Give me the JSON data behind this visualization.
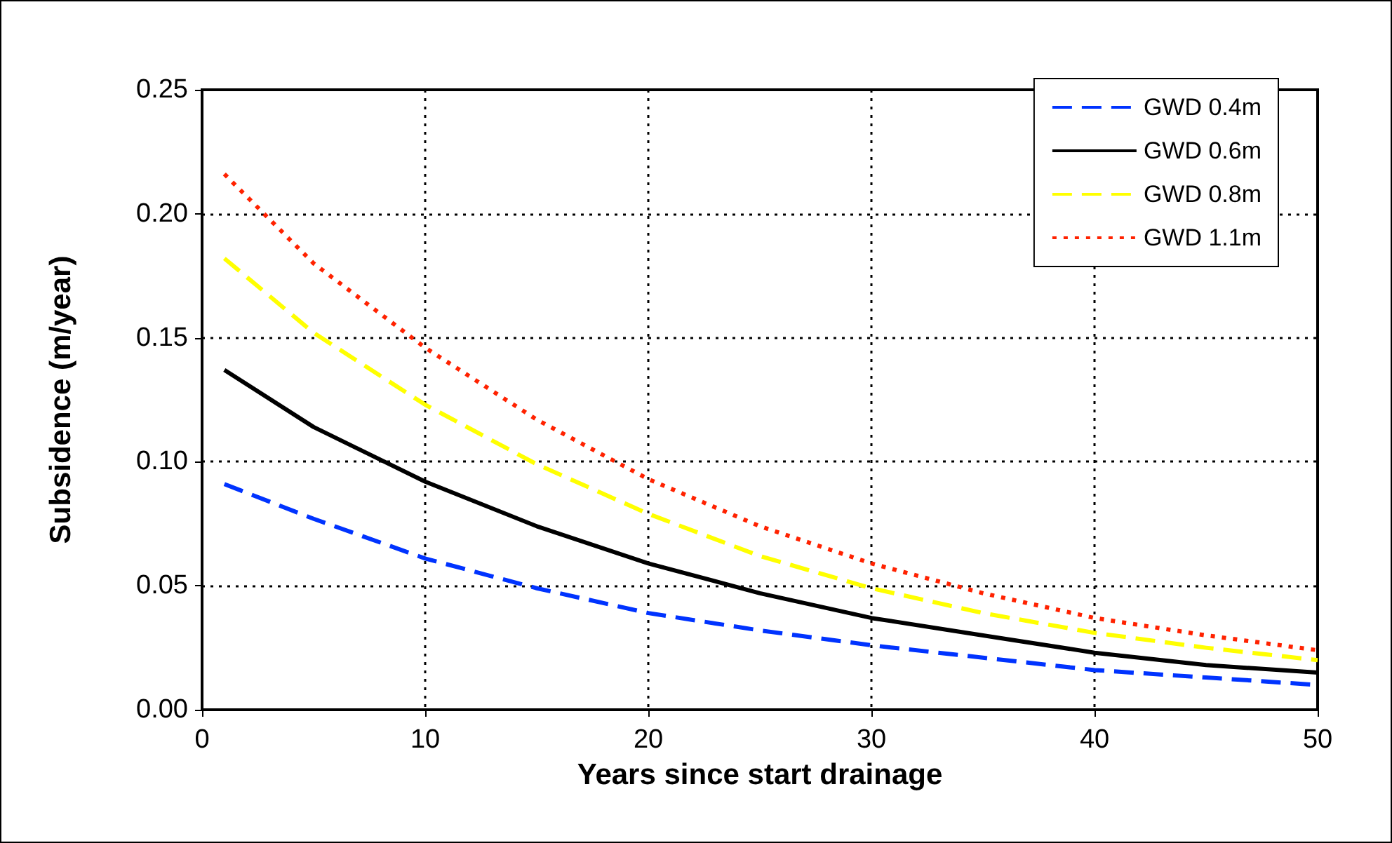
{
  "chart_data": {
    "type": "line",
    "xlabel": "Years since start drainage",
    "ylabel": "Subsidence (m/year)",
    "x": [
      1,
      5,
      10,
      15,
      20,
      25,
      30,
      35,
      40,
      45,
      50
    ],
    "series": [
      {
        "name": "GWD 0.4m",
        "color": "#0033ff",
        "line_style": "dashed",
        "values": [
          0.091,
          0.077,
          0.061,
          0.049,
          0.039,
          0.032,
          0.026,
          0.021,
          0.016,
          0.013,
          0.01
        ]
      },
      {
        "name": "GWD 0.6m",
        "color": "#000000",
        "line_style": "solid",
        "values": [
          0.137,
          0.114,
          0.092,
          0.074,
          0.059,
          0.047,
          0.037,
          0.03,
          0.023,
          0.018,
          0.015
        ]
      },
      {
        "name": "GWD 0.8m",
        "color": "#ffff00",
        "line_style": "dashed",
        "values": [
          0.182,
          0.152,
          0.123,
          0.099,
          0.079,
          0.062,
          0.049,
          0.039,
          0.031,
          0.025,
          0.02
        ]
      },
      {
        "name": "GWD 1.1m",
        "color": "#ff2200",
        "line_style": "dotted",
        "values": [
          0.216,
          0.18,
          0.146,
          0.117,
          0.093,
          0.074,
          0.059,
          0.047,
          0.037,
          0.03,
          0.024
        ]
      }
    ],
    "xlim": [
      0,
      50
    ],
    "xticks": [
      0,
      10,
      20,
      30,
      40,
      50
    ],
    "ylim": [
      0,
      0.25
    ],
    "yticks": [
      {
        "value": 0,
        "label": "0.00"
      },
      {
        "value": 0.05,
        "label": "0.05"
      },
      {
        "value": 0.1,
        "label": "0.10"
      },
      {
        "value": 0.15,
        "label": "0.15"
      },
      {
        "value": 0.2,
        "label": "0.20"
      },
      {
        "value": 0.25,
        "label": "0.25"
      }
    ],
    "grid": true,
    "legend": "top right",
    "marker": "none"
  }
}
